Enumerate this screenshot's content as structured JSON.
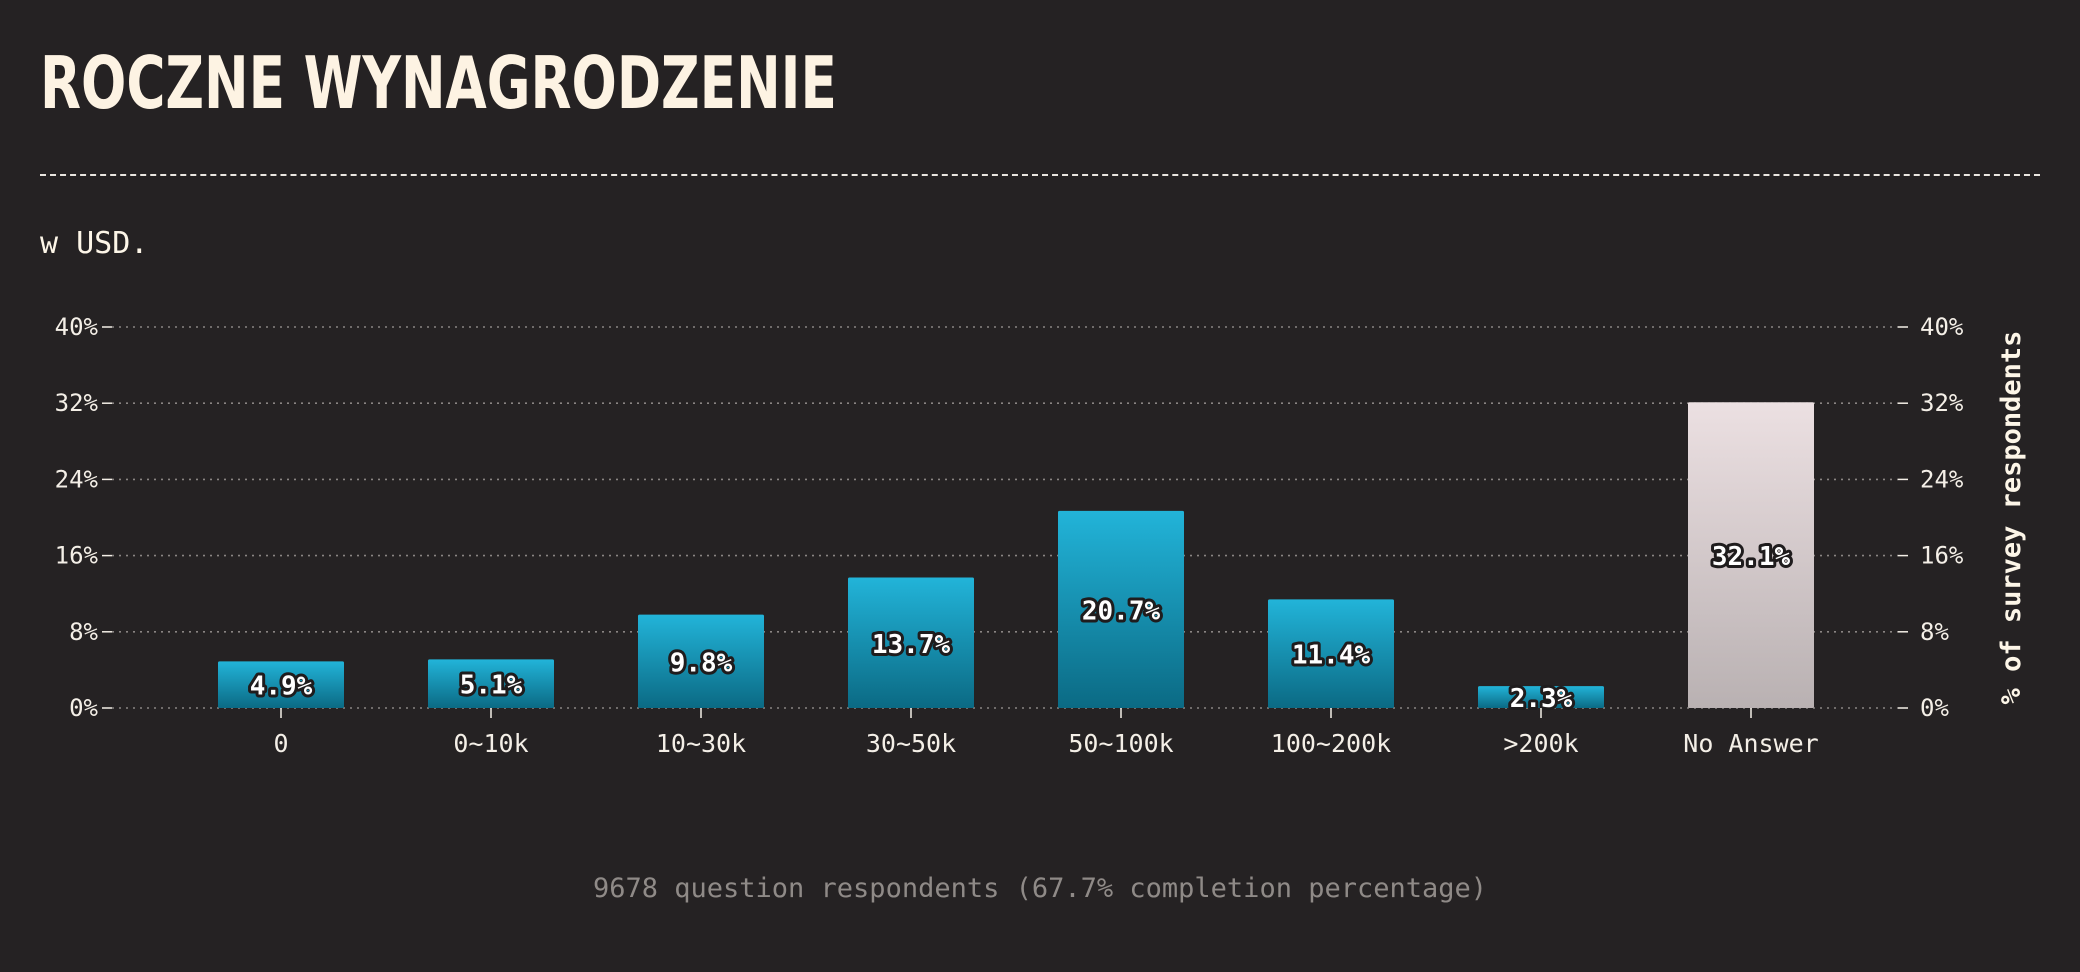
{
  "header": {
    "title": "Roczne wynagrodzenie",
    "subtitle": "w USD."
  },
  "footer": {
    "note": "9678 question respondents (67.7% completion percentage)"
  },
  "colors": {
    "background": "#252223",
    "bar_top": "#22b4d9",
    "bar_bottom": "#0b6a84",
    "highlight_top": "#ece0e2",
    "highlight_bottom": "#b9b1b2",
    "gridline": "#8a8583",
    "text": "#f4efe7"
  },
  "chart_data": {
    "type": "bar",
    "categories": [
      "0",
      "0~10k",
      "10~30k",
      "30~50k",
      "50~100k",
      "100~200k",
      ">200k",
      "No Answer"
    ],
    "values": [
      4.9,
      5.1,
      9.8,
      13.7,
      20.7,
      11.4,
      2.3,
      32.1
    ],
    "value_labels": [
      "4.9%",
      "5.1%",
      "9.8%",
      "13.7%",
      "20.7%",
      "11.4%",
      "2.3%",
      "32.1%"
    ],
    "highlight_category": "No Answer",
    "ylabel": "% of survey respondents",
    "ylim": [
      0,
      40
    ],
    "yticks": [
      0,
      8,
      16,
      24,
      32,
      40
    ],
    "ytick_labels": [
      "0%",
      "8%",
      "16%",
      "24%",
      "32%",
      "40%"
    ],
    "grid": true,
    "legend": "none"
  }
}
